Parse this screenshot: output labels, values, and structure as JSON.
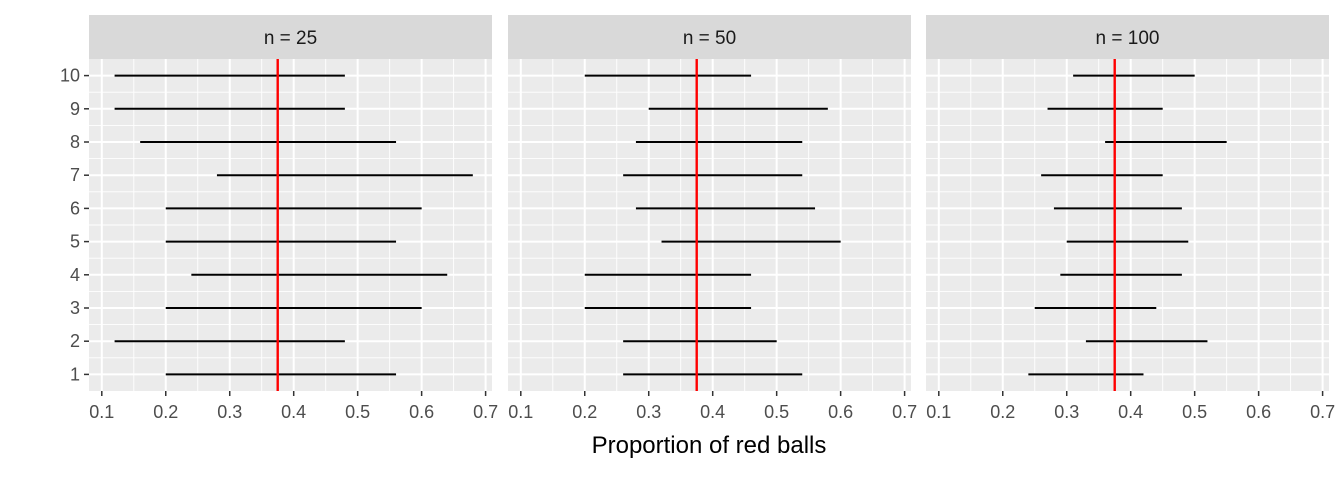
{
  "chart_data": {
    "type": "interval",
    "xlabel": "Proportion of red balls",
    "ylabel": "",
    "x_ticks": [
      "0.1",
      "0.2",
      "0.3",
      "0.4",
      "0.5",
      "0.6",
      "0.7"
    ],
    "y_ticks": [
      "1",
      "2",
      "3",
      "4",
      "5",
      "6",
      "7",
      "8",
      "9",
      "10"
    ],
    "xlim": [
      0.1,
      0.7
    ],
    "ylim": [
      0.5,
      10.5
    ],
    "grid": true,
    "reference_line": {
      "x": 0.375,
      "color": "#ff0000"
    },
    "panels": [
      {
        "label": "n = 25",
        "intervals": [
          {
            "y": 1,
            "lower": 0.2,
            "upper": 0.56
          },
          {
            "y": 2,
            "lower": 0.12,
            "upper": 0.48
          },
          {
            "y": 3,
            "lower": 0.2,
            "upper": 0.6
          },
          {
            "y": 4,
            "lower": 0.24,
            "upper": 0.64
          },
          {
            "y": 5,
            "lower": 0.2,
            "upper": 0.56
          },
          {
            "y": 6,
            "lower": 0.2,
            "upper": 0.6
          },
          {
            "y": 7,
            "lower": 0.28,
            "upper": 0.68
          },
          {
            "y": 8,
            "lower": 0.16,
            "upper": 0.56
          },
          {
            "y": 9,
            "lower": 0.12,
            "upper": 0.48
          },
          {
            "y": 10,
            "lower": 0.12,
            "upper": 0.48
          }
        ]
      },
      {
        "label": "n = 50",
        "intervals": [
          {
            "y": 1,
            "lower": 0.26,
            "upper": 0.54
          },
          {
            "y": 2,
            "lower": 0.26,
            "upper": 0.5
          },
          {
            "y": 3,
            "lower": 0.2,
            "upper": 0.46
          },
          {
            "y": 4,
            "lower": 0.2,
            "upper": 0.46
          },
          {
            "y": 5,
            "lower": 0.32,
            "upper": 0.6
          },
          {
            "y": 6,
            "lower": 0.28,
            "upper": 0.56
          },
          {
            "y": 7,
            "lower": 0.26,
            "upper": 0.54
          },
          {
            "y": 8,
            "lower": 0.28,
            "upper": 0.54
          },
          {
            "y": 9,
            "lower": 0.3,
            "upper": 0.58
          },
          {
            "y": 10,
            "lower": 0.2,
            "upper": 0.46
          }
        ]
      },
      {
        "label": "n = 100",
        "intervals": [
          {
            "y": 1,
            "lower": 0.24,
            "upper": 0.42
          },
          {
            "y": 2,
            "lower": 0.33,
            "upper": 0.52
          },
          {
            "y": 3,
            "lower": 0.25,
            "upper": 0.44
          },
          {
            "y": 4,
            "lower": 0.29,
            "upper": 0.48
          },
          {
            "y": 5,
            "lower": 0.3,
            "upper": 0.49
          },
          {
            "y": 6,
            "lower": 0.28,
            "upper": 0.48
          },
          {
            "y": 7,
            "lower": 0.26,
            "upper": 0.45
          },
          {
            "y": 8,
            "lower": 0.36,
            "upper": 0.55
          },
          {
            "y": 9,
            "lower": 0.27,
            "upper": 0.45
          },
          {
            "y": 10,
            "lower": 0.31,
            "upper": 0.5
          }
        ]
      }
    ]
  },
  "colors": {
    "panel_background": "#ebebeb",
    "strip_background": "#d9d9d9",
    "grid": "#ffffff",
    "interval": "#000000",
    "reference": "#ff0000"
  }
}
